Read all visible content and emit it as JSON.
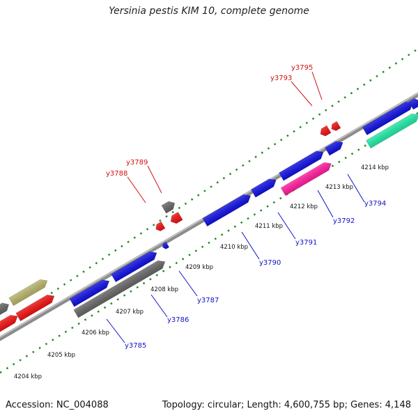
{
  "title": "Yersinia pestis KIM 10, complete genome",
  "footer": {
    "accession": "Accession: NC_004088",
    "summary": "Topology: circular; Length: 4,600,755 bp; Genes: 4,148"
  },
  "colors": {
    "backbone": "#8c8c8c",
    "tick": "#1f8a1f",
    "blue_gene": "#1010e0",
    "red_gene": "#ee1111",
    "gray_gene": "#666666",
    "pink_gene": "#ff1c9e",
    "olive_gene": "#b8b36a",
    "teal_gene": "#22e8a6",
    "red_label": "#d01010",
    "blue_label": "#1010c8"
  },
  "scale_labels": [
    "4204 kbp",
    "4205 kbp",
    "4206 kbp",
    "4207 kbp",
    "4208 kbp",
    "4209 kbp",
    "4210 kbp",
    "4211 kbp",
    "4212 kbp",
    "4213 kbp",
    "4214 kbp"
  ],
  "gene_labels": {
    "forward": [
      "y3788",
      "y3789",
      "y3793",
      "y3795"
    ],
    "reverse": [
      "y3785",
      "y3786",
      "y3787",
      "y3790",
      "y3791",
      "y3792",
      "y3794"
    ]
  }
}
